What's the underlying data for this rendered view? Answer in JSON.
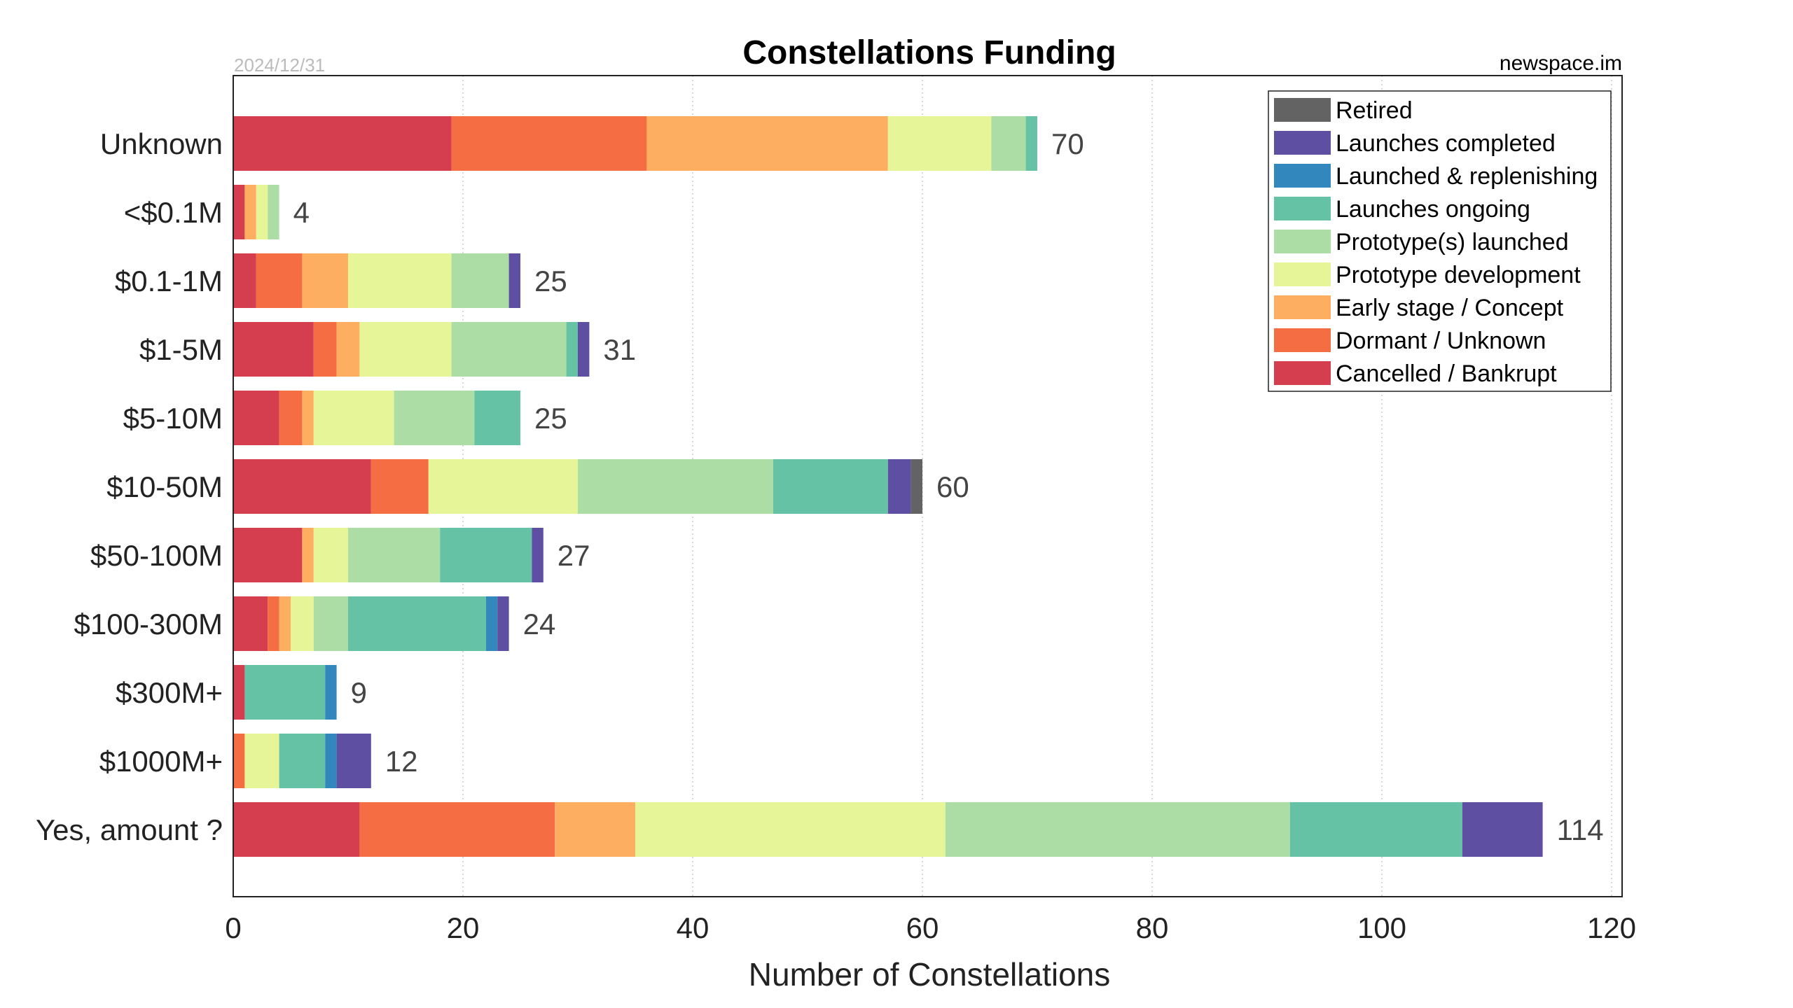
{
  "chart_data": {
    "type": "bar",
    "orientation": "horizontal",
    "stacked": true,
    "title": "Constellations Funding",
    "date_label": "2024/12/31",
    "source_label": "newspace.im",
    "xlabel": "Number of Constellations",
    "ylabel": "",
    "xlim": [
      0,
      120
    ],
    "xticks": [
      0,
      20,
      40,
      60,
      80,
      100,
      120
    ],
    "grid": "x-dotted",
    "legend_position": "top-right",
    "categories": [
      "Unknown",
      "<$0.1M",
      "$0.1-1M",
      "$1-5M",
      "$5-10M",
      "$10-50M",
      "$50-100M",
      "$100-300M",
      "$300M+",
      "$1000M+",
      "Yes, amount ?"
    ],
    "totals": [
      70,
      4,
      25,
      31,
      25,
      60,
      27,
      24,
      9,
      12,
      114
    ],
    "series": [
      {
        "name": "Cancelled / Bankrupt",
        "color": "#d53e4f",
        "values": [
          19,
          1,
          2,
          7,
          4,
          12,
          6,
          3,
          1,
          0,
          11
        ]
      },
      {
        "name": "Dormant / Unknown",
        "color": "#f46d43",
        "values": [
          17,
          0,
          4,
          2,
          2,
          5,
          0,
          1,
          0,
          1,
          17
        ]
      },
      {
        "name": "Early stage / Concept",
        "color": "#fdae61",
        "values": [
          21,
          1,
          4,
          2,
          1,
          0,
          1,
          1,
          0,
          0,
          7
        ]
      },
      {
        "name": "Prototype development",
        "color": "#e6f598",
        "values": [
          9,
          1,
          9,
          8,
          7,
          13,
          3,
          2,
          0,
          3,
          27
        ]
      },
      {
        "name": "Prototype(s) launched",
        "color": "#abdda4",
        "values": [
          3,
          1,
          5,
          10,
          7,
          17,
          8,
          3,
          0,
          0,
          30
        ]
      },
      {
        "name": "Launches ongoing",
        "color": "#66c2a5",
        "values": [
          1,
          0,
          0,
          1,
          4,
          10,
          8,
          12,
          7,
          4,
          15
        ]
      },
      {
        "name": "Launched & replenishing",
        "color": "#3288bd",
        "values": [
          0,
          0,
          0,
          0,
          0,
          0,
          0,
          1,
          1,
          1,
          0
        ]
      },
      {
        "name": "Launches completed",
        "color": "#5e4fa2",
        "values": [
          0,
          0,
          1,
          1,
          0,
          2,
          1,
          1,
          0,
          3,
          7
        ]
      },
      {
        "name": "Retired",
        "color": "#636363",
        "values": [
          0,
          0,
          0,
          0,
          0,
          1,
          0,
          0,
          0,
          0,
          0
        ]
      }
    ],
    "legend_order": [
      "Retired",
      "Launches completed",
      "Launched & replenishing",
      "Launches ongoing",
      "Prototype(s) launched",
      "Prototype development",
      "Early stage / Concept",
      "Dormant / Unknown",
      "Cancelled / Bankrupt"
    ]
  }
}
